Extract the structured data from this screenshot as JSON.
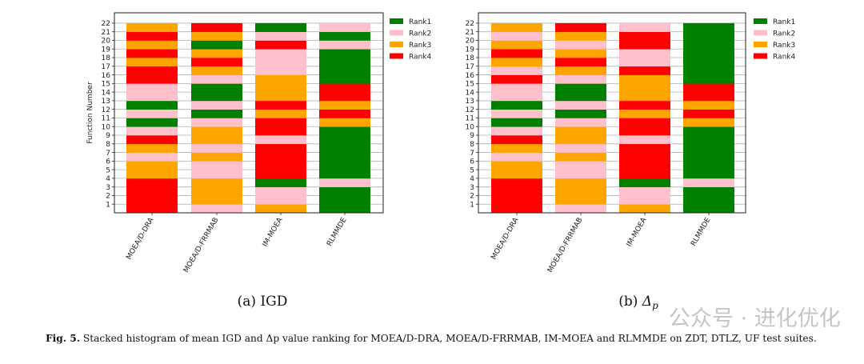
{
  "chart_data": [
    {
      "type": "bar",
      "stacked": true,
      "subtitle": "(a) IGD",
      "ylabel": "Function Number",
      "categories": [
        "MOEA/D-DRA",
        "MOEA/D-FRRMAB",
        "IM-MOEA",
        "RLMMDE"
      ],
      "yticks": [
        1,
        2,
        3,
        4,
        5,
        6,
        7,
        8,
        9,
        10,
        11,
        12,
        13,
        14,
        15,
        16,
        17,
        18,
        19,
        20,
        21,
        22
      ],
      "ylim": [
        0,
        23.2
      ],
      "grid": "horizontal",
      "legend": {
        "placement": "outside-top-right",
        "entries": [
          "Rank1",
          "Rank2",
          "Rank3",
          "Rank4"
        ]
      },
      "rank_colors": {
        "1": "#008000",
        "2": "#ffc0cb",
        "3": "#ffa500",
        "4": "#ff0000"
      },
      "ranks_by_function": {
        "MOEA/D-DRA": [
          4,
          4,
          4,
          4,
          3,
          3,
          2,
          3,
          4,
          2,
          1,
          2,
          1,
          2,
          2,
          4,
          4,
          3,
          4,
          3,
          4,
          3
        ],
        "MOEA/D-FRRMAB": [
          2,
          3,
          3,
          3,
          2,
          2,
          3,
          2,
          3,
          3,
          2,
          1,
          2,
          1,
          1,
          2,
          3,
          4,
          3,
          1,
          3,
          4
        ],
        "IM-MOEA": [
          3,
          2,
          2,
          1,
          4,
          4,
          4,
          4,
          2,
          4,
          4,
          3,
          4,
          3,
          3,
          3,
          2,
          2,
          2,
          4,
          2,
          1
        ],
        "RLMMDE": [
          1,
          1,
          1,
          2,
          1,
          1,
          1,
          1,
          1,
          1,
          3,
          4,
          3,
          4,
          4,
          1,
          1,
          1,
          1,
          2,
          1,
          2
        ]
      }
    },
    {
      "type": "bar",
      "stacked": true,
      "subtitle_prefix": "(b)",
      "subtitle_symbol": "Δ",
      "subtitle_sub": "p",
      "ylabel": "",
      "categories": [
        "MOEA/D-DRA",
        "MOEA/D-FRRMAB",
        "IM-MOEA",
        "RLMMDE"
      ],
      "yticks": [
        1,
        2,
        3,
        4,
        5,
        6,
        7,
        8,
        9,
        10,
        11,
        12,
        13,
        14,
        15,
        16,
        17,
        18,
        19,
        20,
        21,
        22
      ],
      "ylim": [
        0,
        23.2
      ],
      "grid": "horizontal",
      "legend": {
        "placement": "outside-top-right",
        "entries": [
          "Rank1",
          "Rank2",
          "Rank3",
          "Rank4"
        ]
      },
      "rank_colors": {
        "1": "#008000",
        "2": "#ffc0cb",
        "3": "#ffa500",
        "4": "#ff0000"
      },
      "ranks_by_function": {
        "MOEA/D-DRA": [
          4,
          4,
          4,
          4,
          3,
          3,
          2,
          3,
          4,
          2,
          1,
          2,
          1,
          2,
          2,
          4,
          2,
          3,
          4,
          3,
          2,
          3
        ],
        "MOEA/D-FRRMAB": [
          2,
          3,
          3,
          3,
          2,
          2,
          3,
          2,
          3,
          3,
          2,
          1,
          2,
          1,
          1,
          2,
          3,
          4,
          3,
          2,
          3,
          4
        ],
        "IM-MOEA": [
          3,
          2,
          2,
          1,
          4,
          4,
          4,
          4,
          2,
          4,
          4,
          3,
          4,
          3,
          3,
          3,
          4,
          2,
          2,
          4,
          4,
          2
        ],
        "RLMMDE": [
          1,
          1,
          1,
          2,
          1,
          1,
          1,
          1,
          1,
          1,
          3,
          4,
          3,
          4,
          4,
          1,
          1,
          1,
          1,
          1,
          1,
          1
        ]
      }
    }
  ],
  "caption": {
    "label": "Fig. 5.",
    "text": "Stacked histogram of mean IGD and Δp value ranking for MOEA/D-DRA, MOEA/D-FRRMAB, IM-MOEA and RLMMDE on ZDT, DTLZ, UF test suites."
  },
  "watermark": "公众号 · 进化优化"
}
